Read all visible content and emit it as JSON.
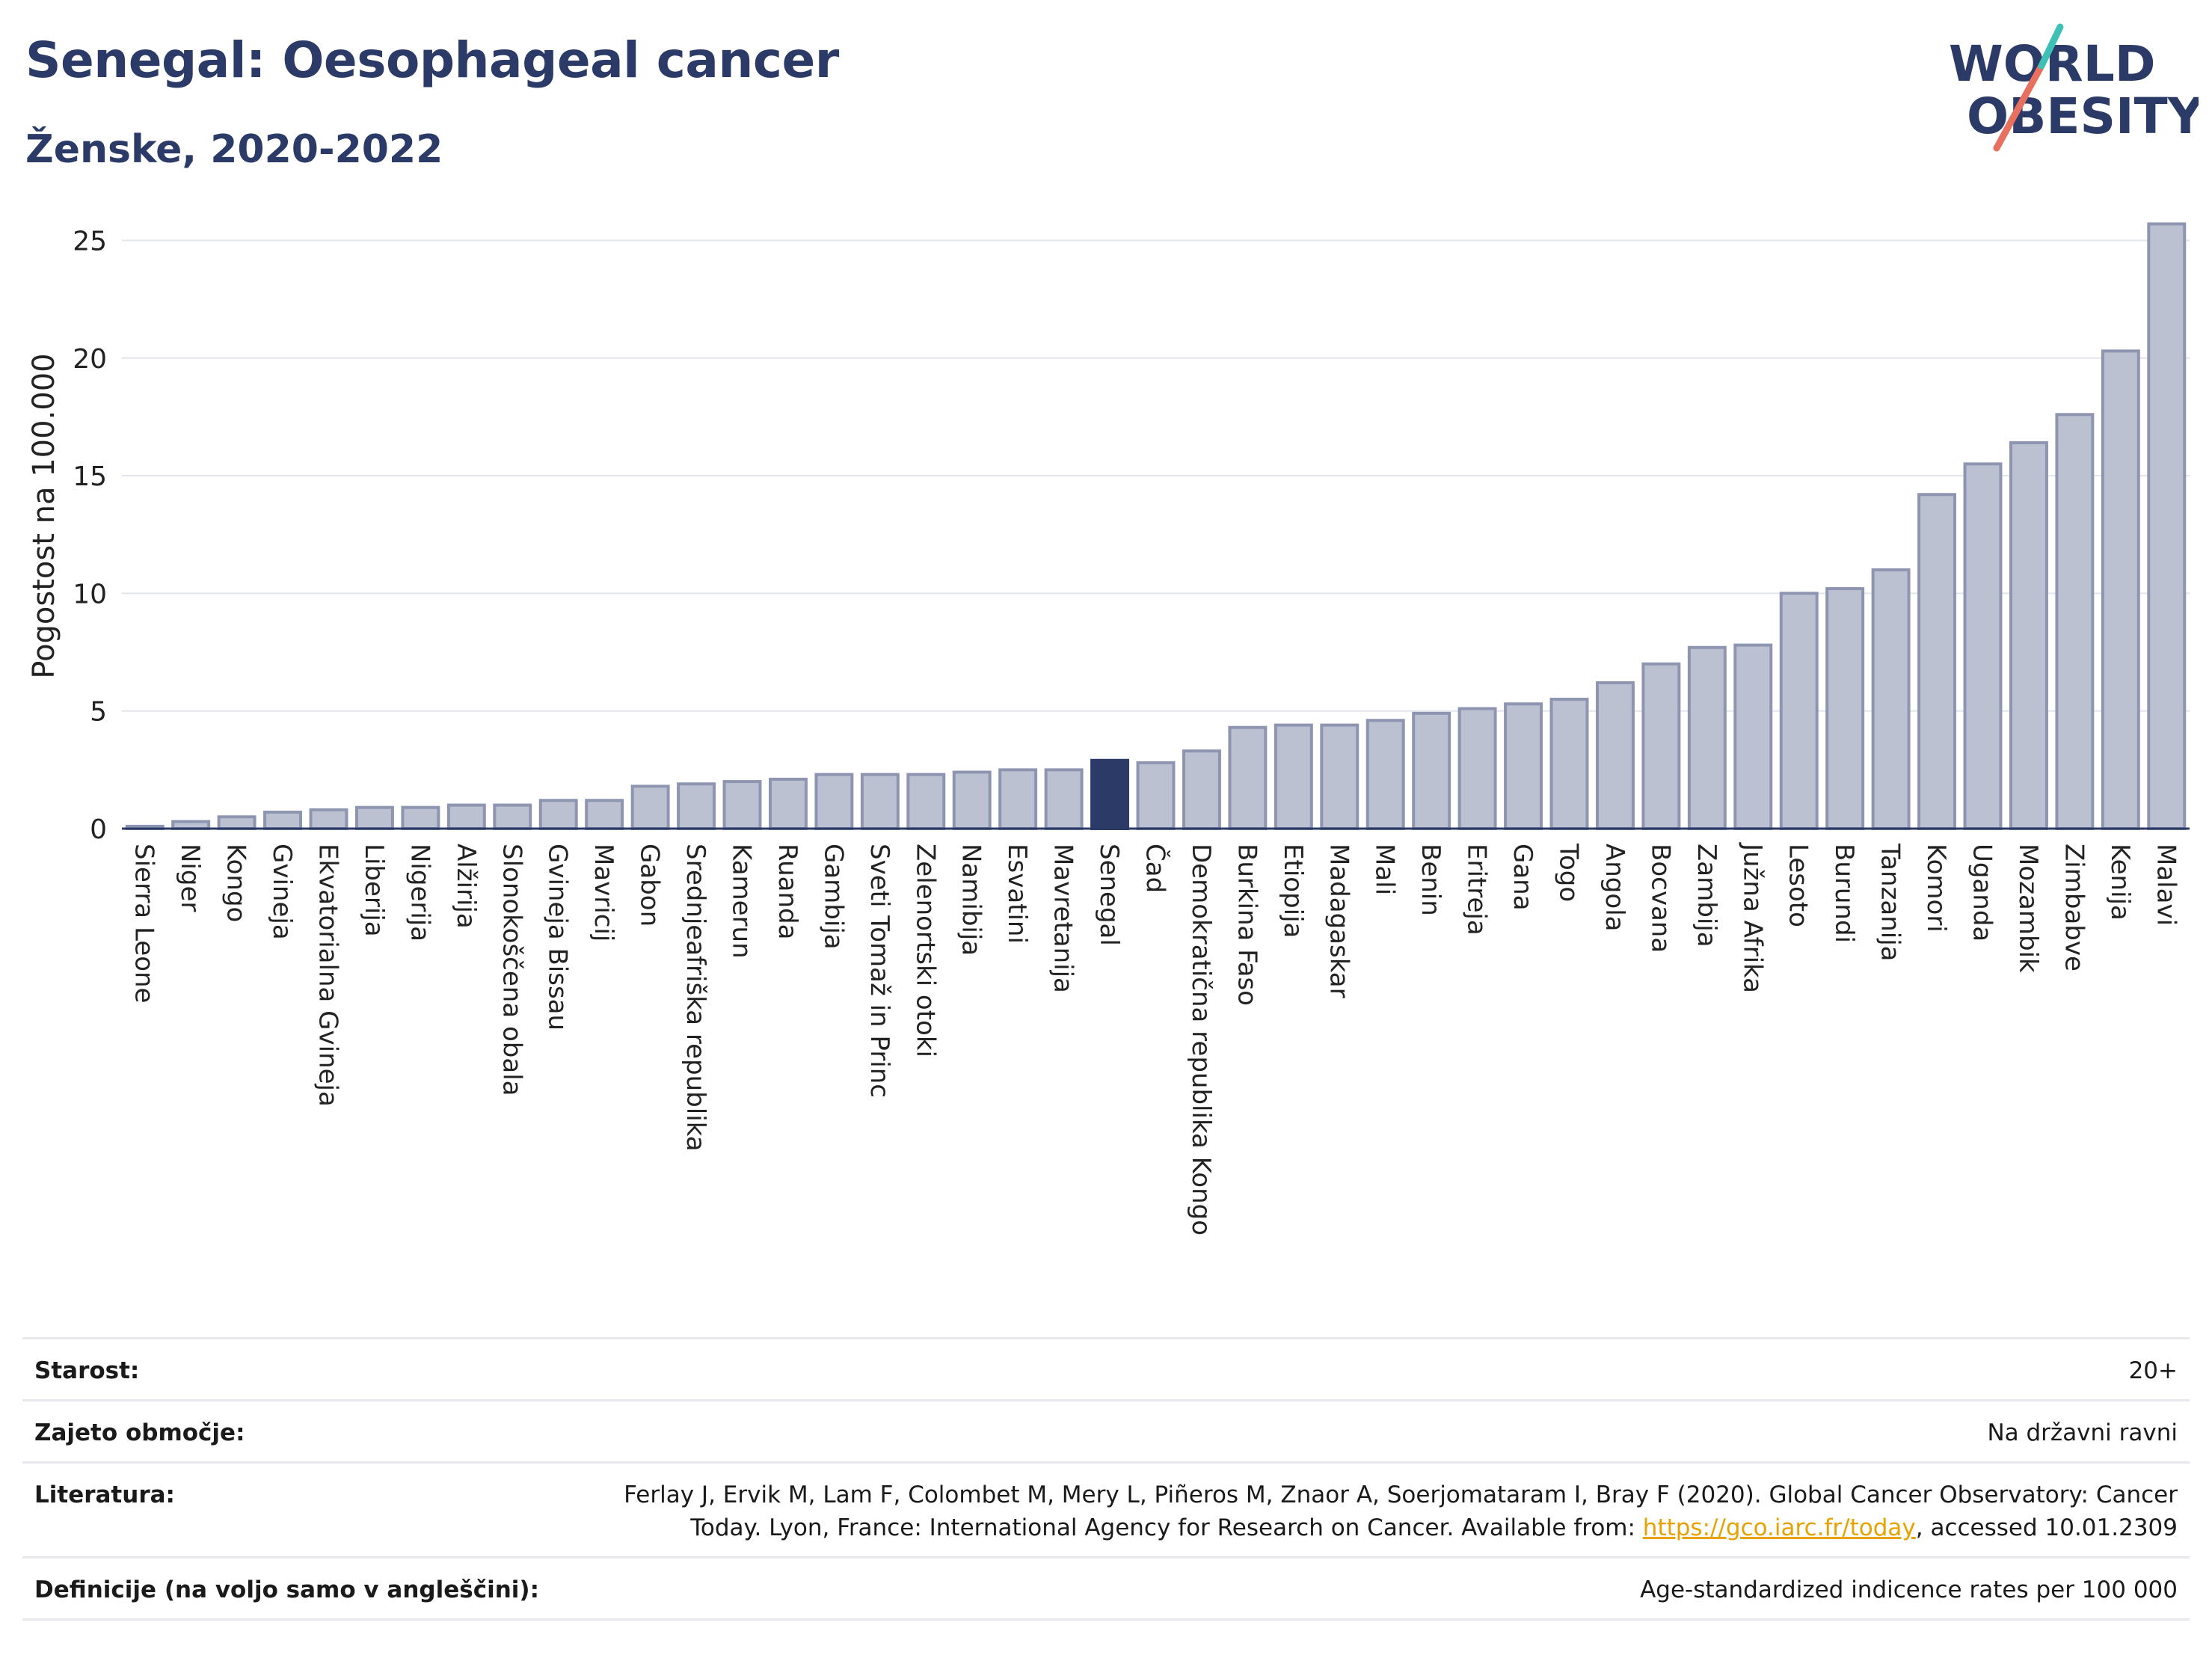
{
  "header": {
    "title": "Senegal: Oesophageal cancer",
    "subtitle": "Ženske, 2020-2022"
  },
  "logo": {
    "line1": "WORLD",
    "line2": "OBESITY",
    "accent_colors": [
      "#3ec1b4",
      "#e8705f"
    ],
    "text_color": "#2b3a67"
  },
  "chart_data": {
    "type": "bar",
    "ylabel": "Pogostost na 100.000",
    "xlabel": "",
    "ylim": [
      0,
      26
    ],
    "yticks": [
      0,
      5,
      10,
      15,
      20,
      25
    ],
    "grid": true,
    "highlight": "Senegal",
    "colors": {
      "bar": "#bcc1d2",
      "bar_edge": "#8e95b0",
      "highlight": "#2b3a67"
    },
    "categories": [
      "Sierra Leone",
      "Niger",
      "Kongo",
      "Gvineja",
      "Ekvatorialna Gvineja",
      "Liberija",
      "Nigerija",
      "Alžirija",
      "Slonokoščena obala",
      "Gvineja Bissau",
      "Mavricij",
      "Gabon",
      "Srednjeafriška republika",
      "Kamerun",
      "Ruanda",
      "Gambija",
      "Sveti Tomaž in Princ",
      "Zelenortski otoki",
      "Namibija",
      "Esvatini",
      "Mavretanija",
      "Senegal",
      "Čad",
      "Demokratična republika Kongo",
      "Burkina Faso",
      "Etiopija",
      "Madagaskar",
      "Mali",
      "Benin",
      "Eritreja",
      "Gana",
      "Togo",
      "Angola",
      "Bocvana",
      "Zambija",
      "Južna Afrika",
      "Lesoto",
      "Burundi",
      "Tanzanija",
      "Komori",
      "Uganda",
      "Mozambik",
      "Zimbabve",
      "Kenija",
      "Malavi"
    ],
    "values": [
      0.1,
      0.3,
      0.5,
      0.7,
      0.8,
      0.9,
      0.9,
      1.0,
      1.0,
      1.2,
      1.2,
      1.8,
      1.9,
      2.0,
      2.1,
      2.3,
      2.3,
      2.3,
      2.4,
      2.5,
      2.5,
      2.9,
      2.8,
      3.3,
      4.3,
      4.4,
      4.4,
      4.6,
      4.9,
      5.1,
      5.3,
      5.5,
      6.2,
      7.0,
      7.7,
      7.8,
      10.0,
      10.2,
      11.0,
      14.2,
      15.5,
      16.4,
      17.6,
      20.3,
      25.7
    ]
  },
  "info": {
    "age_label": "Starost:",
    "age_value": "20+",
    "coverage_label": "Zajeto območje:",
    "coverage_value": "Na državni ravni",
    "references_label": "Literatura:",
    "references_line1": "Ferlay J, Ervik M, Lam F, Colombet M, Mery L, Piñeros M, Znaor A, Soerjomataram I, Bray F (2020). Global Cancer Observatory: Cancer",
    "references_line2_pre": "Today. Lyon, France: International Agency for Research on Cancer. Available from: ",
    "references_link": "https://gco.iarc.fr/today",
    "references_line2_post": ", accessed 10.01.2309",
    "definitions_label": "Definicije (na voljo samo v angleščini):",
    "definitions_value": "Age-standardized indicence rates per 100 000"
  }
}
